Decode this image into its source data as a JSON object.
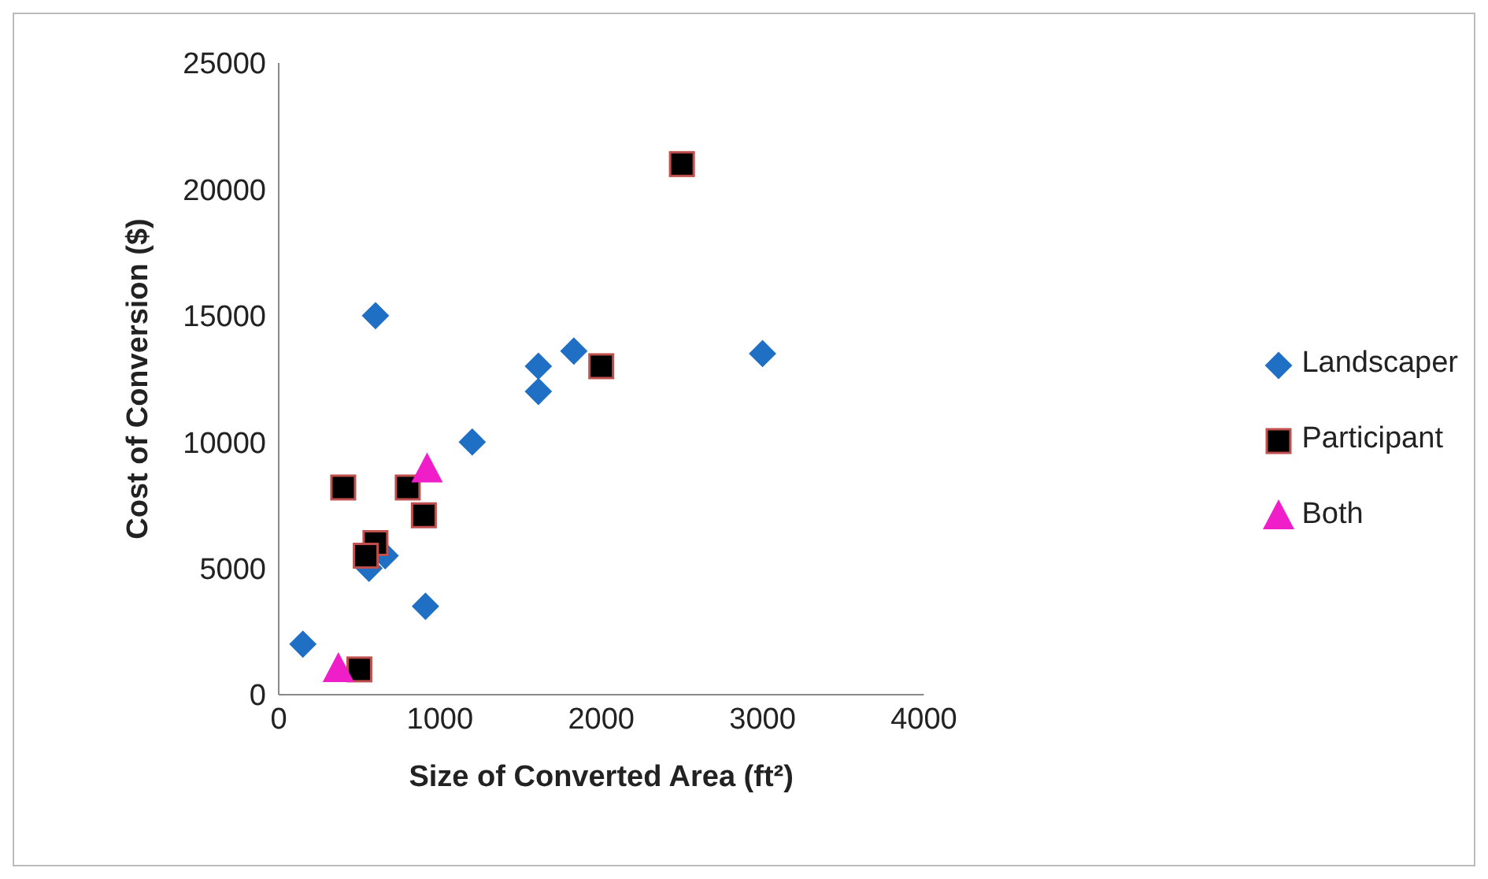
{
  "chart_data": {
    "type": "scatter",
    "xlabel": "Size of Converted Area (ft²)",
    "ylabel": "Cost of Conversion ($)",
    "xlim": [
      0,
      4000
    ],
    "xticks": [
      0,
      1000,
      2000,
      3000,
      4000
    ],
    "ylim": [
      0,
      25000
    ],
    "yticks": [
      0,
      5000,
      10000,
      15000,
      20000,
      25000
    ],
    "grid": false,
    "legend": "right",
    "series": [
      {
        "name": "Landscaper",
        "color": "#1f6fc4",
        "marker": "diamond",
        "x": [
          150,
          600,
          910,
          1200,
          1610,
          1610,
          1830,
          3000,
          560,
          660
        ],
        "values": [
          2000,
          15000,
          3500,
          10000,
          13000,
          12000,
          13600,
          13500,
          5000,
          5500
        ]
      },
      {
        "name": "Participant",
        "color": "#000000",
        "marker": "square",
        "x": [
          500,
          400,
          800,
          900,
          600,
          540,
          2000,
          2500
        ],
        "values": [
          1000,
          8200,
          8200,
          7100,
          6000,
          5500,
          13000,
          21000
        ]
      },
      {
        "name": "Both",
        "color": "#f01ec8",
        "marker": "triangle",
        "x": [
          370,
          920
        ],
        "values": [
          1000,
          8900
        ]
      }
    ]
  }
}
